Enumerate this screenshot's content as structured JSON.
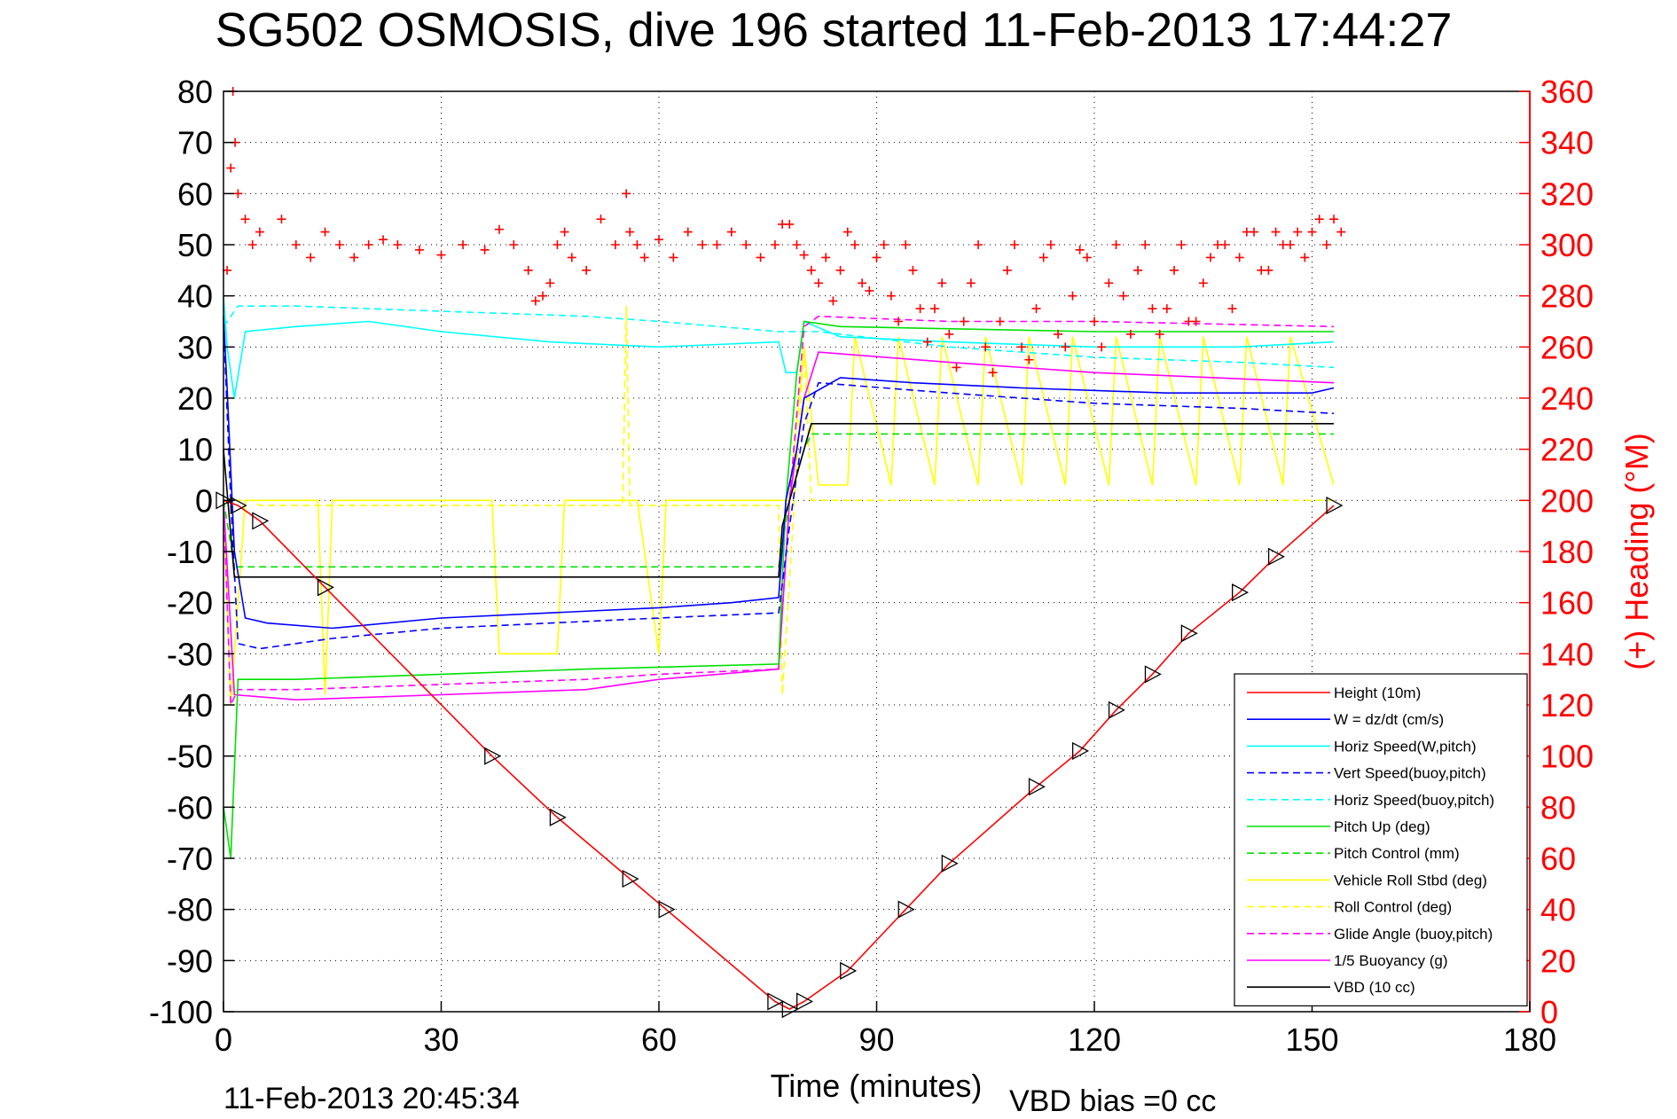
{
  "title": "SG502 OSMOSIS, dive 196 started 11-Feb-2013 17:44:27",
  "footer": {
    "timestamp": "11-Feb-2013 20:45:34",
    "vbd_bias": "VBD bias =0 cc"
  },
  "colors": {
    "red": "#ff0000",
    "blue": "#0000ff",
    "cyan": "#00ffff",
    "green": "#00e000",
    "yellow": "#ffff00",
    "magenta": "#ff00ff",
    "black": "#000000"
  },
  "chart_data": {
    "type": "line",
    "xlabel": "Time (minutes)",
    "ylabel_right": "(+) Heading (°M)",
    "xlim": [
      0,
      180
    ],
    "ylim": [
      -100,
      80
    ],
    "ylim_right": [
      0,
      360
    ],
    "xticks": [
      0,
      30,
      60,
      90,
      120,
      150,
      180
    ],
    "yticks": [
      -100,
      -90,
      -80,
      -70,
      -60,
      -50,
      -40,
      -30,
      -20,
      -10,
      0,
      10,
      20,
      30,
      40,
      50,
      60,
      70,
      80
    ],
    "yticks_right": [
      0,
      20,
      40,
      60,
      80,
      100,
      120,
      140,
      160,
      180,
      200,
      220,
      240,
      260,
      280,
      300,
      320,
      340,
      360
    ],
    "grid": true,
    "legend_position": "bottom-right",
    "series": [
      {
        "name": "Height (10m)",
        "color": "#ff0000",
        "style": "solid",
        "markers": true,
        "x": [
          0,
          2,
          5,
          14,
          37,
          46,
          56,
          61,
          76,
          78,
          80,
          86,
          94,
          100,
          112,
          118,
          123,
          128,
          133,
          140,
          145,
          153
        ],
        "y": [
          0,
          -1,
          -4,
          -17,
          -50,
          -62,
          -74,
          -80,
          -98,
          -99.5,
          -98,
          -92,
          -80,
          -71,
          -56,
          -49,
          -41,
          -34,
          -26,
          -18,
          -11,
          -1
        ]
      },
      {
        "name": "W = dz/dt (cm/s)",
        "color": "#0000ff",
        "style": "solid",
        "x": [
          0,
          0.5,
          1.5,
          3,
          6,
          15,
          30,
          45,
          60,
          70,
          76.5,
          77.5,
          79,
          80,
          85,
          95,
          110,
          130,
          150,
          153
        ],
        "y": [
          36,
          22,
          -10,
          -23,
          -24,
          -25,
          -23,
          -22,
          -21,
          -20,
          -19,
          0,
          10,
          20,
          24,
          23,
          22,
          21,
          21,
          22
        ]
      },
      {
        "name": "Horiz Speed(W,pitch)",
        "color": "#00ffff",
        "style": "solid",
        "x": [
          0,
          0.5,
          1.5,
          3,
          10,
          20,
          30,
          45,
          60,
          76.5,
          77.5,
          79,
          80,
          85,
          100,
          120,
          140,
          153
        ],
        "y": [
          40,
          30,
          20,
          33,
          34,
          35,
          33,
          31,
          30,
          31,
          25,
          25,
          35,
          32,
          31,
          30,
          30,
          31
        ]
      },
      {
        "name": "Vert Speed(buoy,pitch)",
        "color": "#0000ff",
        "style": "dashed",
        "x": [
          0,
          1,
          2,
          5,
          15,
          30,
          45,
          60,
          76.5,
          78,
          80,
          82,
          100,
          120,
          140,
          153
        ],
        "y": [
          35,
          0,
          -28,
          -29,
          -27,
          -25,
          -24,
          -23,
          -22,
          -5,
          15,
          23,
          21,
          19,
          18,
          17
        ]
      },
      {
        "name": "Horiz Speed(buoy,pitch)",
        "color": "#00ffff",
        "style": "dashed",
        "x": [
          0,
          1,
          2,
          10,
          30,
          50,
          60,
          76.5,
          78,
          80,
          82,
          100,
          120,
          140,
          153
        ],
        "y": [
          34,
          36,
          38,
          38,
          37,
          36,
          35,
          33,
          33,
          33,
          33,
          30,
          28,
          27,
          26
        ]
      },
      {
        "name": "Pitch Up (deg)",
        "color": "#00e000",
        "style": "solid",
        "x": [
          0,
          1,
          2,
          10,
          30,
          50,
          76.5,
          77.5,
          79,
          80,
          85,
          120,
          153
        ],
        "y": [
          -60,
          -70,
          -35,
          -35,
          -34,
          -33,
          -32,
          0,
          25,
          35,
          34,
          33,
          33
        ]
      },
      {
        "name": "Pitch Control (mm)",
        "color": "#00e000",
        "style": "dashed",
        "x": [
          0,
          1.5,
          10,
          76.5,
          78,
          80,
          81,
          153
        ],
        "y": [
          0,
          -13,
          -13,
          -13,
          0,
          10,
          13,
          13
        ]
      },
      {
        "name": "Vehicle Roll Stbd (deg)",
        "color": "#ffff00",
        "style": "solid",
        "x": [
          0,
          1,
          3,
          5,
          13,
          14,
          15,
          37,
          38,
          46,
          47,
          56,
          57,
          60,
          61,
          76.5,
          78,
          80,
          82,
          86,
          87,
          92,
          93,
          98,
          99,
          104,
          105,
          110,
          111,
          116,
          117,
          122,
          123,
          128,
          129,
          134,
          135,
          140,
          141,
          146,
          147,
          153
        ],
        "y": [
          0,
          -40,
          0,
          0,
          0,
          -38,
          0,
          0,
          -30,
          -30,
          0,
          0,
          0,
          -30,
          0,
          0,
          0,
          30,
          3,
          3,
          32,
          3,
          32,
          3,
          32,
          3,
          32,
          3,
          32,
          3,
          32,
          3,
          32,
          3,
          32,
          3,
          32,
          3,
          32,
          3,
          32,
          3
        ]
      },
      {
        "name": "Roll Control (deg)",
        "color": "#ffff00",
        "style": "dashed",
        "x": [
          0,
          4,
          5,
          55,
          55.5,
          56,
          76.5,
          77,
          80,
          81,
          153
        ],
        "y": [
          0,
          0,
          -1,
          -1,
          38,
          -1,
          -1,
          -38,
          30,
          0,
          0
        ]
      },
      {
        "name": "Glide Angle (buoy,pitch)",
        "color": "#ff00ff",
        "style": "dashed",
        "x": [
          0,
          1,
          2,
          10,
          30,
          50,
          60,
          76.5,
          78,
          80,
          82,
          100,
          120,
          153
        ],
        "y": [
          0,
          -40,
          -37,
          -37,
          -36,
          -35,
          -34,
          -33,
          0,
          34,
          36,
          35,
          35,
          34
        ]
      },
      {
        "name": "1/5 Buoyancy (g)",
        "color": "#ff00ff",
        "style": "solid",
        "x": [
          0,
          1.5,
          10,
          30,
          50,
          60,
          76.5,
          78,
          80,
          82,
          100,
          120,
          153
        ],
        "y": [
          0,
          -38,
          -39,
          -38,
          -37,
          -35,
          -33,
          0,
          20,
          29,
          27,
          25,
          23
        ]
      },
      {
        "name": "VBD (10 cc)",
        "color": "#000000",
        "style": "solid",
        "x": [
          0,
          1.5,
          2,
          76.5,
          77,
          81,
          82,
          153
        ],
        "y": [
          10,
          -15,
          -15,
          -15,
          -5,
          15,
          15,
          15
        ]
      }
    ],
    "heading": {
      "axis": "right",
      "color": "#ff0000",
      "marker": "+",
      "x": [
        0.5,
        1,
        1.3,
        1.6,
        2,
        3,
        4,
        5,
        8,
        10,
        12,
        14,
        16,
        18,
        20,
        22,
        24,
        27,
        30,
        33,
        36,
        38,
        40,
        42,
        43,
        44,
        45,
        46,
        47,
        48,
        50,
        52,
        54,
        55.5,
        56,
        57,
        58,
        60,
        62,
        64,
        66,
        68,
        70,
        72,
        74,
        76,
        77,
        78,
        79,
        80,
        81,
        82,
        83,
        84,
        85,
        86,
        87,
        88,
        89,
        90,
        91,
        92,
        93,
        94,
        95,
        96,
        97,
        98,
        99,
        100,
        101,
        102,
        103,
        104,
        105,
        106,
        107,
        108,
        109,
        110,
        111,
        112,
        113,
        114,
        115,
        116,
        117,
        118,
        119,
        120,
        121,
        122,
        123,
        124,
        125,
        126,
        127,
        128,
        129,
        130,
        131,
        132,
        133,
        134,
        135,
        136,
        137,
        138,
        139,
        140,
        141,
        142,
        143,
        144,
        145,
        146,
        147,
        148,
        149,
        150,
        151,
        152,
        153,
        154
      ],
      "y": [
        290,
        330,
        360,
        340,
        320,
        310,
        300,
        305,
        310,
        300,
        295,
        305,
        300,
        295,
        300,
        302,
        300,
        298,
        296,
        300,
        298,
        306,
        300,
        290,
        278,
        280,
        285,
        300,
        305,
        295,
        290,
        310,
        300,
        320,
        305,
        300,
        295,
        302,
        295,
        305,
        300,
        300,
        305,
        300,
        295,
        300,
        308,
        308,
        300,
        296,
        290,
        285,
        295,
        278,
        290,
        305,
        300,
        285,
        282,
        295,
        300,
        280,
        270,
        300,
        290,
        275,
        262,
        275,
        285,
        265,
        252,
        270,
        285,
        300,
        260,
        250,
        270,
        290,
        300,
        260,
        255,
        275,
        295,
        300,
        265,
        260,
        280,
        298,
        295,
        270,
        260,
        285,
        300,
        280,
        265,
        290,
        300,
        275,
        265,
        275,
        290,
        300,
        270,
        270,
        285,
        295,
        300,
        300,
        275,
        295,
        305,
        305,
        290,
        290,
        305,
        300,
        300,
        305,
        295,
        305,
        310,
        300,
        310,
        305
      ]
    }
  }
}
